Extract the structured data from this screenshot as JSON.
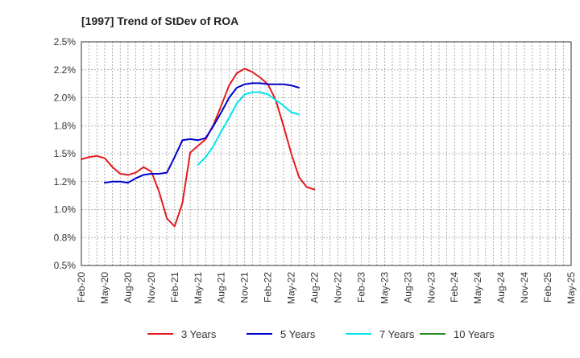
{
  "chart_data": {
    "type": "line",
    "title": "[1997]  Trend of StDev of ROA",
    "xlabel": "",
    "ylabel": "",
    "ylim": [
      0.5,
      2.5
    ],
    "y_ticks": [
      0.5,
      0.75,
      1.0,
      1.25,
      1.5,
      1.75,
      2.0,
      2.25,
      2.5
    ],
    "y_tick_labels": [
      "0.5%",
      "0.8%",
      "1.0%",
      "1.2%",
      "1.5%",
      "1.8%",
      "2.0%",
      "2.2%",
      "2.5%"
    ],
    "x_tick_labels": [
      "Feb-20",
      "May-20",
      "Aug-20",
      "Nov-20",
      "Feb-21",
      "May-21",
      "Aug-21",
      "Nov-21",
      "Feb-22",
      "May-22",
      "Aug-22",
      "Nov-22",
      "Feb-23",
      "May-23",
      "Aug-23",
      "Nov-23",
      "Feb-24",
      "May-24",
      "Aug-24",
      "Nov-24",
      "Feb-25",
      "May-25"
    ],
    "grid": true,
    "legend_position": "bottom",
    "series": [
      {
        "name": "3 Years",
        "color": "#e31a1c",
        "values": [
          1.45,
          1.47,
          1.48,
          1.46,
          1.38,
          1.32,
          1.31,
          1.33,
          1.38,
          1.34,
          1.16,
          0.92,
          0.85,
          1.06,
          1.51,
          1.57,
          1.63,
          1.76,
          1.93,
          2.11,
          2.22,
          2.26,
          2.23,
          2.18,
          2.12,
          1.98,
          1.75,
          1.5,
          1.29,
          1.2,
          1.18
        ]
      },
      {
        "name": "5 Years",
        "color": "#0000cc",
        "values": [
          null,
          null,
          null,
          1.24,
          1.25,
          1.25,
          1.24,
          1.28,
          1.31,
          1.32,
          1.32,
          1.33,
          1.47,
          1.62,
          1.63,
          1.62,
          1.64,
          1.75,
          1.87,
          2.0,
          2.09,
          2.12,
          2.13,
          2.13,
          2.12,
          2.12,
          2.12,
          2.11,
          2.09
        ]
      },
      {
        "name": "7 Years",
        "color": "#00e5ee",
        "values": [
          null,
          null,
          null,
          null,
          null,
          null,
          null,
          null,
          null,
          null,
          null,
          null,
          null,
          null,
          null,
          1.4,
          1.47,
          1.57,
          1.7,
          1.82,
          1.95,
          2.03,
          2.05,
          2.05,
          2.03,
          1.98,
          1.93,
          1.87,
          1.85
        ]
      },
      {
        "name": "10 Years",
        "color": "#228b22",
        "values": []
      }
    ]
  }
}
